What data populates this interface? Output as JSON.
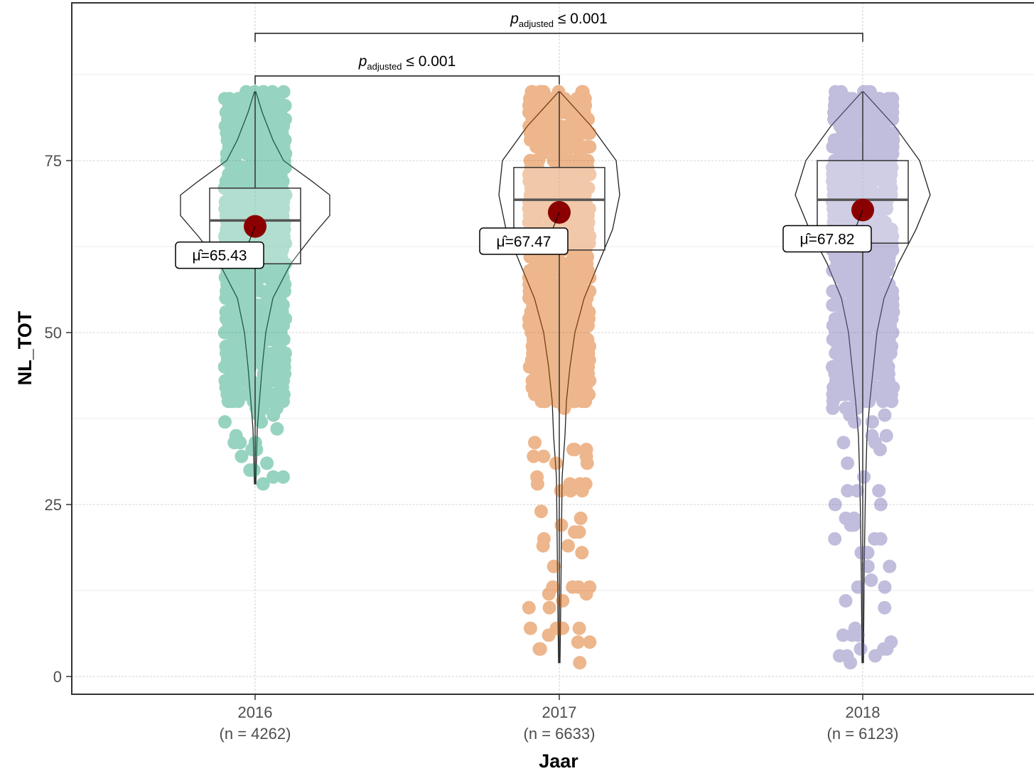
{
  "chart_data": {
    "type": "violin-box-scatter",
    "xlabel": "Jaar",
    "ylabel": "NL_TOT",
    "ylim": [
      -2.5,
      97.5
    ],
    "yticks": [
      0,
      25,
      50,
      75
    ],
    "grid": true,
    "colors": [
      "#1b9e77",
      "#d95f02",
      "#7570b3"
    ],
    "mean_color": "#8b0000",
    "categories": [
      {
        "tick_year": "2016",
        "tick_n": "(n = 4262)",
        "mean": 65.43,
        "mean_label": "μ̂=65.43",
        "box": {
          "q1": 60,
          "median": 66.3,
          "q3": 71,
          "whisker_low": 28,
          "whisker_high": 85
        },
        "points_range": [
          28,
          85
        ]
      },
      {
        "tick_year": "2017",
        "tick_n": "(n = 6633)",
        "mean": 67.47,
        "mean_label": "μ̂=67.47",
        "box": {
          "q1": 62,
          "median": 69.3,
          "q3": 74,
          "whisker_low": 2,
          "whisker_high": 85
        },
        "points_range": [
          2,
          85
        ]
      },
      {
        "tick_year": "2018",
        "tick_n": "(n = 6123)",
        "mean": 67.82,
        "mean_label": "μ̂=67.82",
        "box": {
          "q1": 63,
          "median": 69.3,
          "q3": 75,
          "whisker_low": 2,
          "whisker_high": 85
        },
        "points_range": [
          2,
          85
        ]
      }
    ],
    "comparisons": [
      {
        "from": 0,
        "to": 1,
        "p_prefix": "p",
        "p_sub": "adjusted",
        "p_text": "≤ 0.001",
        "y": 87.3
      },
      {
        "from": 0,
        "to": 2,
        "p_prefix": "p",
        "p_sub": "adjusted",
        "p_text": "≤ 0.001",
        "y": 93.5
      }
    ]
  }
}
